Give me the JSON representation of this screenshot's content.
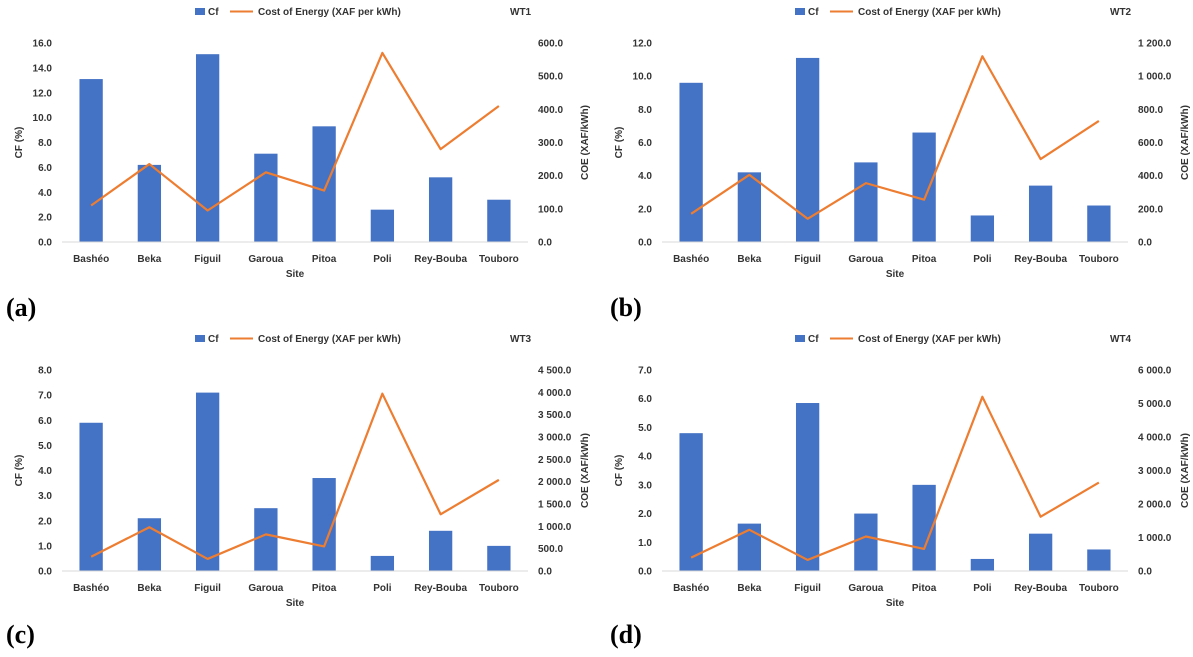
{
  "chart_data": [
    {
      "type": "bar",
      "title": "WT1",
      "label": "(a)",
      "categories": [
        "Bashéo",
        "Beka",
        "Figuil",
        "Garoua",
        "Pitoa",
        "Poli",
        "Rey-Bouba",
        "Touboro"
      ],
      "xlabel": "Site",
      "ylabel": "CF (%)",
      "y2label": "COE (XAF/kWh)",
      "ylim": [
        0,
        16
      ],
      "ytick_step": 2,
      "y2lim": [
        0,
        600
      ],
      "y2tick_step": 100,
      "yticks": [
        "0.0",
        "2.0",
        "4.0",
        "6.0",
        "8.0",
        "10.0",
        "12.0",
        "14.0",
        "16.0"
      ],
      "y2ticks": [
        "0.0",
        "100.0",
        "200.0",
        "300.0",
        "400.0",
        "500.0",
        "600.0"
      ],
      "series": [
        {
          "name": "Cf",
          "kind": "bar",
          "axis": "left",
          "color": "#4472C4",
          "values": [
            13.1,
            6.2,
            15.1,
            7.1,
            9.3,
            2.6,
            5.2,
            3.4
          ]
        },
        {
          "name": "Cost of Energy  (XAF per kWh)",
          "kind": "line",
          "axis": "right",
          "color": "#ED7D31",
          "values": [
            110,
            235,
            95,
            210,
            155,
            570,
            280,
            410
          ]
        }
      ],
      "legend": "top"
    },
    {
      "type": "bar",
      "title": "WT2",
      "label": "(b)",
      "categories": [
        "Bashéo",
        "Beka",
        "Figuil",
        "Garoua",
        "Pitoa",
        "Poli",
        "Rey-Bouba",
        "Touboro"
      ],
      "xlabel": "Site",
      "ylabel": "CF (%)",
      "y2label": "COE (XAF/kWh)",
      "ylim": [
        0,
        12
      ],
      "ytick_step": 2,
      "y2lim": [
        0,
        1200
      ],
      "y2tick_step": 200,
      "yticks": [
        "0.0",
        "2.0",
        "4.0",
        "6.0",
        "8.0",
        "10.0",
        "12.0"
      ],
      "y2ticks": [
        "0.0",
        "200.0",
        "400.0",
        "600.0",
        "800.0",
        "1 000.0",
        "1 200.0"
      ],
      "series": [
        {
          "name": "Cf",
          "kind": "bar",
          "axis": "left",
          "color": "#4472C4",
          "values": [
            9.6,
            4.2,
            11.1,
            4.8,
            6.6,
            1.6,
            3.4,
            2.2
          ]
        },
        {
          "name": "Cost of Energy  (XAF per kWh)",
          "kind": "line",
          "axis": "right",
          "color": "#ED7D31",
          "values": [
            170,
            405,
            140,
            355,
            255,
            1120,
            500,
            730
          ]
        }
      ],
      "legend": "top"
    },
    {
      "type": "bar",
      "title": "WT3",
      "label": "(c)",
      "categories": [
        "Bashéo",
        "Beka",
        "Figuil",
        "Garoua",
        "Pitoa",
        "Poli",
        "Rey-Bouba",
        "Touboro"
      ],
      "xlabel": "Site",
      "ylabel": "CF (%)",
      "y2label": "COE (XAF/kWh)",
      "ylim": [
        0,
        8
      ],
      "ytick_step": 1,
      "y2lim": [
        0,
        4500
      ],
      "y2tick_step": 500,
      "yticks": [
        "0.0",
        "1.0",
        "2.0",
        "3.0",
        "4.0",
        "5.0",
        "6.0",
        "7.0",
        "8.0"
      ],
      "y2ticks": [
        "0.0",
        "500.0",
        "1 000.0",
        "1 500.0",
        "2 000.0",
        "2 500.0",
        "3 000.0",
        "3 500.0",
        "4 000.0",
        "4 500.0"
      ],
      "series": [
        {
          "name": "Cf",
          "kind": "bar",
          "axis": "left",
          "color": "#4472C4",
          "values": [
            5.9,
            2.1,
            7.1,
            2.5,
            3.7,
            0.6,
            1.6,
            1.0
          ]
        },
        {
          "name": "Cost of Energy  (XAF per kWh)",
          "kind": "line",
          "axis": "right",
          "color": "#ED7D31",
          "values": [
            320,
            980,
            270,
            820,
            550,
            3970,
            1270,
            2040
          ]
        }
      ],
      "legend": "top"
    },
    {
      "type": "bar",
      "title": "WT4",
      "label": "(d)",
      "categories": [
        "Bashéo",
        "Beka",
        "Figuil",
        "Garoua",
        "Pitoa",
        "Poli",
        "Rey-Bouba",
        "Touboro"
      ],
      "xlabel": "Site",
      "ylabel": "CF (%)",
      "y2label": "COE (XAF/kWh)",
      "ylim": [
        0,
        7
      ],
      "ytick_step": 1,
      "y2lim": [
        0,
        6000
      ],
      "y2tick_step": 1000,
      "yticks": [
        "0.0",
        "1.0",
        "2.0",
        "3.0",
        "4.0",
        "5.0",
        "6.0",
        "7.0"
      ],
      "y2ticks": [
        "0.0",
        "1 000.0",
        "2 000.0",
        "3 000.0",
        "4 000.0",
        "5 000.0",
        "6 000.0"
      ],
      "series": [
        {
          "name": "Cf",
          "kind": "bar",
          "axis": "left",
          "color": "#4472C4",
          "values": [
            4.8,
            1.65,
            5.85,
            2.0,
            3.0,
            0.42,
            1.3,
            0.75
          ]
        },
        {
          "name": "Cost of Energy  (XAF per kWh)",
          "kind": "line",
          "axis": "right",
          "color": "#ED7D31",
          "values": [
            400,
            1230,
            330,
            1030,
            660,
            5200,
            1620,
            2640
          ]
        }
      ],
      "legend": "top"
    }
  ]
}
